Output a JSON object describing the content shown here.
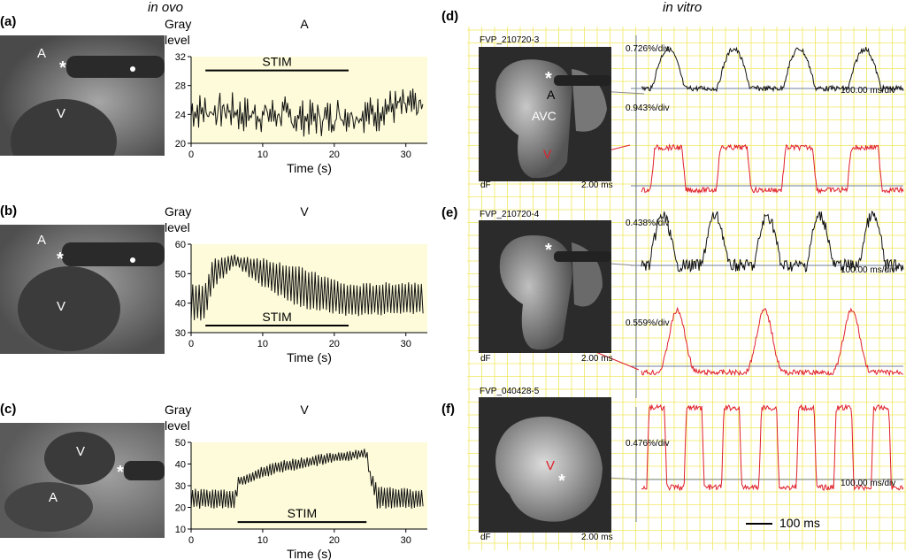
{
  "headers": {
    "left": "in ovo",
    "right": "in vitro"
  },
  "panels_left": [
    {
      "id": "(a)",
      "image_labels": [
        "A",
        "V",
        "*"
      ]
    },
    {
      "id": "(b)",
      "image_labels": [
        "A",
        "V",
        "*"
      ]
    },
    {
      "id": "(c)",
      "image_labels": [
        "A",
        "V",
        "*"
      ]
    }
  ],
  "panels_right": [
    {
      "id": "(d)",
      "code": "FVP_210720-3",
      "dF": "dF",
      "ms": "2.00 ms",
      "image_labels": [
        "A",
        "AVC",
        "V",
        "*"
      ],
      "scales": [
        "0.726%/div",
        "0.943%/div"
      ],
      "timebase": "100.00 ms/div"
    },
    {
      "id": "(e)",
      "code": "FVP_210720-4",
      "dF": "dF",
      "ms": "2.00 ms",
      "image_labels": [
        "*"
      ],
      "scales": [
        "0.438%/div",
        "0.559%/div"
      ],
      "timebase": "100.00 ms/div"
    },
    {
      "id": "(f)",
      "code": "FVP_040428-5",
      "dF": "dF",
      "ms": "2.00 ms",
      "image_labels": [
        "V",
        "*"
      ],
      "scales": [
        "0.476%/div"
      ],
      "timebase": "100.00 ms/div"
    }
  ],
  "scale_bar": "100 ms",
  "colors": {
    "plot_bg": "#fdfbd9",
    "grid": "#f0e860",
    "trace_black": "#111111",
    "trace_red": "#e0202a"
  },
  "chart_data": [
    {
      "type": "line",
      "panel": "(a)",
      "title": "A",
      "ylabel": "Gray level",
      "xlabel": "Time (s)",
      "xlim": [
        0,
        33
      ],
      "ylim": [
        20,
        32
      ],
      "xticks": [
        0,
        10,
        20,
        30
      ],
      "yticks": [
        20,
        24,
        28,
        32
      ],
      "annotation": "STIM",
      "stim": [
        2,
        22
      ],
      "baseline": [
        24.5,
        24,
        23.5,
        24,
        25
      ],
      "amplitude": 1.8,
      "period_s": 0.35
    },
    {
      "type": "line",
      "panel": "(b)",
      "title": "V",
      "ylabel": "Gray level",
      "xlabel": "Time (s)",
      "xlim": [
        0,
        33
      ],
      "ylim": [
        30,
        60
      ],
      "xticks": [
        0,
        10,
        20,
        30
      ],
      "yticks": [
        30,
        40,
        50,
        60
      ],
      "annotation": "STIM",
      "stim": [
        2,
        22
      ],
      "envelope": [
        [
          0,
          34,
          46
        ],
        [
          2,
          35,
          46
        ],
        [
          3,
          45,
          55
        ],
        [
          6,
          53,
          56
        ],
        [
          10,
          46,
          55
        ],
        [
          15,
          39,
          52
        ],
        [
          22,
          36,
          46
        ],
        [
          32,
          37,
          47
        ]
      ],
      "period_s": 0.45
    },
    {
      "type": "line",
      "panel": "(c)",
      "title": "V",
      "ylabel": "Gray level",
      "xlabel": "Time (s)",
      "xlim": [
        0,
        33
      ],
      "ylim": [
        10,
        50
      ],
      "xticks": [
        0,
        10,
        20,
        30
      ],
      "yticks": [
        10,
        20,
        30,
        40,
        50
      ],
      "annotation": "STIM",
      "stim": [
        6.5,
        24.5
      ],
      "envelope": [
        [
          0,
          20,
          28
        ],
        [
          6.2,
          20,
          28
        ],
        [
          6.6,
          30,
          34
        ],
        [
          12,
          36,
          41
        ],
        [
          20,
          41,
          45
        ],
        [
          24.5,
          43,
          47
        ],
        [
          25,
          33,
          37
        ],
        [
          26,
          20,
          30
        ],
        [
          33,
          20,
          27
        ]
      ],
      "period_s": 0.4
    },
    {
      "type": "line",
      "panel": "(d)",
      "series": [
        {
          "color": "black",
          "shape": "irregular",
          "bumps": 4
        },
        {
          "color": "red",
          "shape": "plateau",
          "bumps": 4
        }
      ]
    },
    {
      "type": "line",
      "panel": "(e)",
      "series": [
        {
          "color": "black",
          "shape": "spiky",
          "bumps": 5
        },
        {
          "color": "red",
          "shape": "spike",
          "bumps": 3
        }
      ]
    },
    {
      "type": "line",
      "panel": "(f)",
      "series": [
        {
          "color": "red",
          "shape": "plateau",
          "bumps": 7
        }
      ]
    }
  ]
}
